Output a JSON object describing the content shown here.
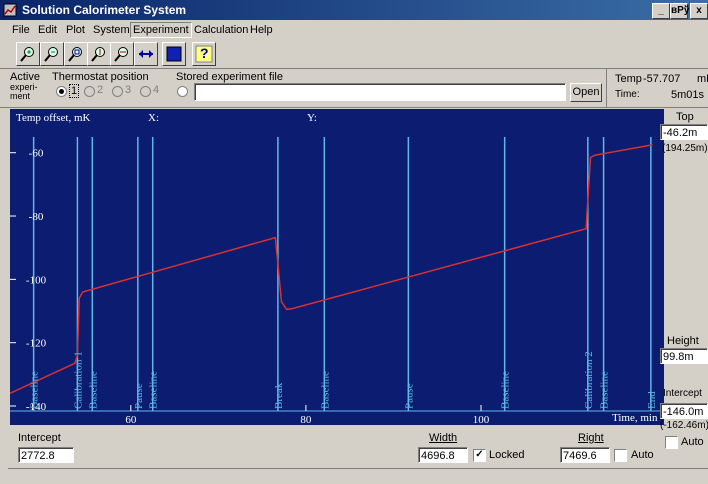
{
  "window": {
    "title": "Solution Calorimeter System",
    "buttons": [
      "_",
      "вРў",
      "x"
    ]
  },
  "menu": [
    {
      "label": "File"
    },
    {
      "label": "Edit"
    },
    {
      "label": "Plot"
    },
    {
      "label": "System"
    },
    {
      "label": "Experiment",
      "selected": true
    },
    {
      "label": "Calculation"
    },
    {
      "label": "Help"
    }
  ],
  "toolbar": {
    "buttons": [
      {
        "name": "zoom-in-icon"
      },
      {
        "name": "zoom-out-icon"
      },
      {
        "name": "zoom-area-icon"
      },
      {
        "name": "zoom-y-icon"
      },
      {
        "name": "zoom-x-icon"
      },
      {
        "name": "fit-icon"
      },
      {
        "name": "fill-icon"
      },
      {
        "name": "help-icon",
        "glyph": "?"
      }
    ]
  },
  "controls": {
    "active_label": "Active",
    "experiment_label_1": "experi-",
    "experiment_label_2": "ment",
    "thermostat_label": "Thermostat position",
    "positions": [
      "1",
      "2",
      "3",
      "4"
    ],
    "selected_position": "1",
    "stored_file_label": "Stored experiment file",
    "stored_file_value": "",
    "open_button": "Open",
    "temp_label": "Temp",
    "temp_value": "-57.707",
    "temp_unit": "mK",
    "time_label": "Time:",
    "time_value": "5m01s"
  },
  "plot": {
    "y_title": "Temp offset, mK",
    "x_readout_label": "X:",
    "y_readout_label": "Y:",
    "x_title": "Time, min",
    "colors": {
      "background": "#0c1c70",
      "grid": "#5fb8e6",
      "curve": "#d93030",
      "text": "#ffffff"
    }
  },
  "chart_data": {
    "type": "line",
    "title": "",
    "xlabel": "Time, min",
    "ylabel": "Temp offset, mK",
    "xlim": [
      46.2,
      120.9
    ],
    "ylim": [
      -146.0,
      -46.2
    ],
    "y_ticks": [
      -60,
      -80,
      -100,
      -120,
      -140
    ],
    "x_ticks": [
      60,
      80,
      100
    ],
    "markers": [
      {
        "x": 48.9,
        "label": "Baseline"
      },
      {
        "x": 53.9,
        "label": "Calibration 1"
      },
      {
        "x": 55.6,
        "label": "Baseline"
      },
      {
        "x": 60.8,
        "label": "Pause"
      },
      {
        "x": 62.5,
        "label": "Baseline"
      },
      {
        "x": 76.8,
        "label": "Break"
      },
      {
        "x": 82.1,
        "label": "Baseline"
      },
      {
        "x": 91.7,
        "label": "Pause"
      },
      {
        "x": 102.7,
        "label": "Baseline"
      },
      {
        "x": 112.2,
        "label": "Calibration 2"
      },
      {
        "x": 114.0,
        "label": "Baseline"
      },
      {
        "x": 119.4,
        "label": "End"
      }
    ],
    "series": [
      {
        "x": [
          46.2,
          53.6,
          53.9,
          54.1,
          54.5,
          76.5,
          76.8,
          77.2,
          77.8,
          78.5,
          112.0,
          112.2,
          112.5,
          113.0,
          119.6
        ],
        "values": [
          -136.0,
          -126.5,
          -124.0,
          -106.0,
          -104.0,
          -86.8,
          -95.0,
          -107.0,
          -109.5,
          -109.2,
          -84.0,
          -75.0,
          -61.5,
          -60.8,
          -57.5
        ]
      }
    ]
  },
  "right_panel": {
    "top_label": "Top",
    "top_value": "-46.2m",
    "top_readout": "(194.25m)",
    "height_label": "Height",
    "height_value": "99.8m",
    "intercept_label": "Intercept",
    "intercept_value": "-146.0m",
    "intercept_readout": "(-162.46m)",
    "auto_label": "Auto"
  },
  "bottom": {
    "intercept_label": "Intercept",
    "intercept_value": "2772.8",
    "width_label": "Width",
    "width_value": "4696.8",
    "locked_label": "Locked",
    "locked_checked": true,
    "right_label": "Right",
    "right_value": "7469.6",
    "auto_label": "Auto",
    "auto_checked": false
  }
}
